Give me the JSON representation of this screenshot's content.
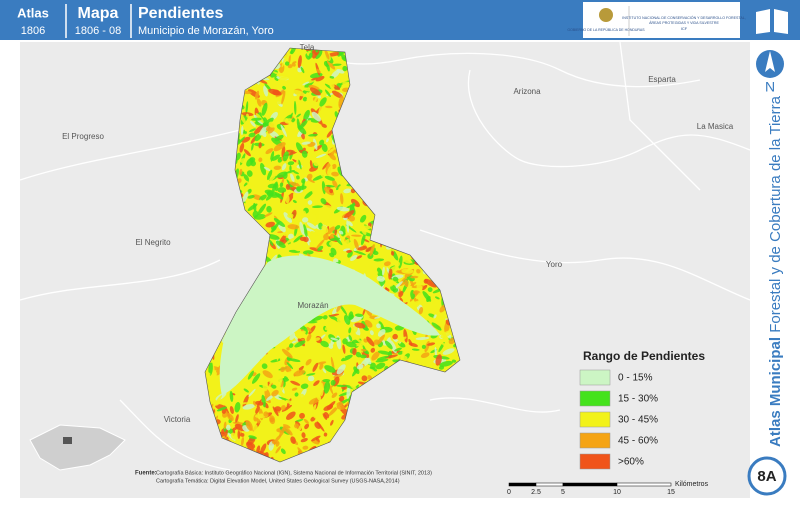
{
  "header": {
    "atlas_label": "Atlas",
    "atlas_number": "1806",
    "map_label": "Mapa",
    "map_number": "1806 - 08",
    "title": "Pendientes",
    "subtitle": "Municipio de Morazán, Yoro",
    "logos": [
      "GOBIERNO DE LA REPÚBLICA DE HONDURAS",
      "INSTITUTO NACIONAL DE CONSERVACIÓN Y DESARROLLO FORESTAL,",
      "ÁREAS PROTEGIDAS Y VIDA SILVESTRE",
      "ICF"
    ]
  },
  "map": {
    "places": [
      "Tela",
      "Esparta",
      "Arizona",
      "La Masica",
      "El Progreso",
      "El Negrito",
      "Yoro",
      "Morazán",
      "Victoria"
    ]
  },
  "legend": {
    "title": "Rango de Pendientes",
    "items": [
      {
        "label": "0 - 15%",
        "color": "#ccf5c4"
      },
      {
        "label": "15 - 30%",
        "color": "#44e21c"
      },
      {
        "label": "30 - 45%",
        "color": "#f2f21a"
      },
      {
        "label": "45 - 60%",
        "color": "#f5a414"
      },
      {
        "label": ">60%",
        "color": "#f0541a"
      }
    ]
  },
  "scale": {
    "ticks": [
      0,
      2.5,
      5,
      10,
      15
    ],
    "unit": "Kilómetros"
  },
  "source": {
    "label": "Fuente:",
    "lines": [
      "Cartografía Básica: Instituto Geográfico Nacional (IGN), Sistema Nacional de Información Territorial (SINIT, 2013)",
      "Cartografía Temática: Digital Elevation Model, United States Geological Survey (USGS-NASA,2014)"
    ]
  },
  "sidebar": {
    "north": "N",
    "title_bold": "Atlas Municipal",
    "title_rest": " Forestal y de Cobertura de la Tierra",
    "badge": "8A"
  }
}
